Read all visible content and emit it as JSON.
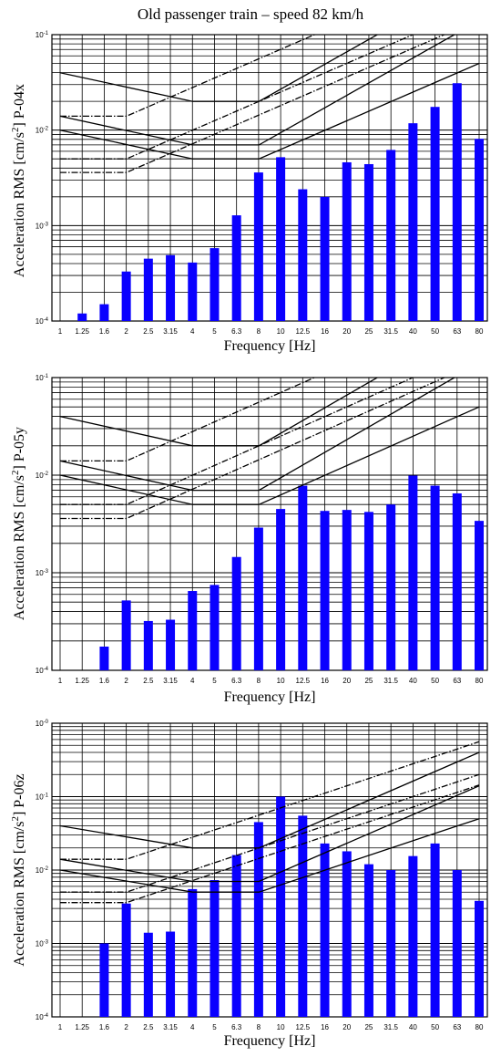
{
  "title": "Old passenger train – speed 82 km/h",
  "colors": {
    "bar": "#0a00ff",
    "grid": "#000000",
    "limit": "#000000"
  },
  "chart_data": [
    {
      "type": "bar",
      "ylabel_main": "Acceleration RMS [cm/s",
      "ylabel_sup": "2",
      "ylabel_tail": "]  P-04x",
      "xlabel": "Frequency [Hz]",
      "yscale": "log",
      "ylim": [
        0.0001,
        0.1
      ],
      "y_ticks": [
        "10-4",
        "10-3",
        "10-2",
        "10-1"
      ],
      "categories": [
        "1",
        "1.25",
        "1.6",
        "2",
        "2.5",
        "3.15",
        "4",
        "5",
        "6.3",
        "8",
        "10",
        "12.5",
        "16",
        "20",
        "25",
        "31.5",
        "40",
        "50",
        "63",
        "80"
      ],
      "values": [
        null,
        0.00012,
        0.00015,
        0.00033,
        0.00045,
        0.00049,
        0.00041,
        0.00058,
        0.00128,
        0.0036,
        0.0052,
        0.0024,
        0.002,
        0.0046,
        0.0044,
        0.0062,
        0.0118,
        0.0175,
        0.031,
        0.0081
      ]
    },
    {
      "type": "bar",
      "ylabel_main": "Acceleration RMS [cm/s",
      "ylabel_sup": "2",
      "ylabel_tail": "]  P-05y",
      "xlabel": "Frequency [Hz]",
      "yscale": "log",
      "ylim": [
        0.0001,
        0.1
      ],
      "y_ticks": [
        "10-4",
        "10-3",
        "10-2",
        "10-1"
      ],
      "categories": [
        "1",
        "1.25",
        "1.6",
        "2",
        "2.5",
        "3.15",
        "4",
        "5",
        "6.3",
        "8",
        "10",
        "12.5",
        "16",
        "20",
        "25",
        "31.5",
        "40",
        "50",
        "63",
        "80"
      ],
      "values": [
        null,
        null,
        0.000175,
        0.00052,
        0.00032,
        0.00033,
        0.00065,
        0.00075,
        0.00145,
        0.0029,
        0.0045,
        0.0078,
        0.0043,
        0.0044,
        0.0042,
        0.005,
        0.0099,
        0.0078,
        0.0065,
        0.0034
      ]
    },
    {
      "type": "bar",
      "ylabel_main": "Acceleration RMS [cm/s",
      "ylabel_sup": "2",
      "ylabel_tail": "]  P-06z",
      "xlabel": "Frequency [Hz]",
      "yscale": "log",
      "ylim": [
        0.0001,
        1
      ],
      "y_ticks": [
        "10-4",
        "10-3",
        "10-2",
        "10-1",
        "10-0"
      ],
      "categories": [
        "1",
        "1.25",
        "1.6",
        "2",
        "2.5",
        "3.15",
        "4",
        "5",
        "6.3",
        "8",
        "10",
        "12.5",
        "16",
        "20",
        "25",
        "31.5",
        "40",
        "50",
        "63",
        "80"
      ],
      "values": [
        null,
        null,
        0.001,
        0.0035,
        0.0014,
        0.00145,
        0.0055,
        0.0073,
        0.016,
        0.045,
        0.1,
        0.055,
        0.023,
        0.018,
        0.012,
        0.01,
        0.0155,
        0.023,
        0.01,
        0.0038
      ]
    }
  ],
  "limit_curves": [
    {
      "style": "solid",
      "points": [
        [
          1,
          0.04
        ],
        [
          4,
          0.02
        ],
        [
          8,
          0.02
        ],
        [
          80,
          0.4
        ]
      ]
    },
    {
      "style": "solid",
      "points": [
        [
          1,
          0.014
        ],
        [
          4,
          0.007
        ],
        [
          8,
          0.007
        ],
        [
          80,
          0.14
        ]
      ]
    },
    {
      "style": "solid",
      "points": [
        [
          1,
          0.01
        ],
        [
          4,
          0.005
        ],
        [
          8,
          0.005
        ],
        [
          80,
          0.05
        ]
      ]
    },
    {
      "style": "dashdot",
      "points": [
        [
          1,
          0.014
        ],
        [
          2,
          0.014
        ],
        [
          80,
          0.56
        ]
      ]
    },
    {
      "style": "dashdot",
      "points": [
        [
          1,
          0.005
        ],
        [
          2,
          0.005
        ],
        [
          80,
          0.2
        ]
      ]
    },
    {
      "style": "dashdot",
      "points": [
        [
          1,
          0.0036
        ],
        [
          2,
          0.0036
        ],
        [
          80,
          0.144
        ]
      ]
    }
  ]
}
